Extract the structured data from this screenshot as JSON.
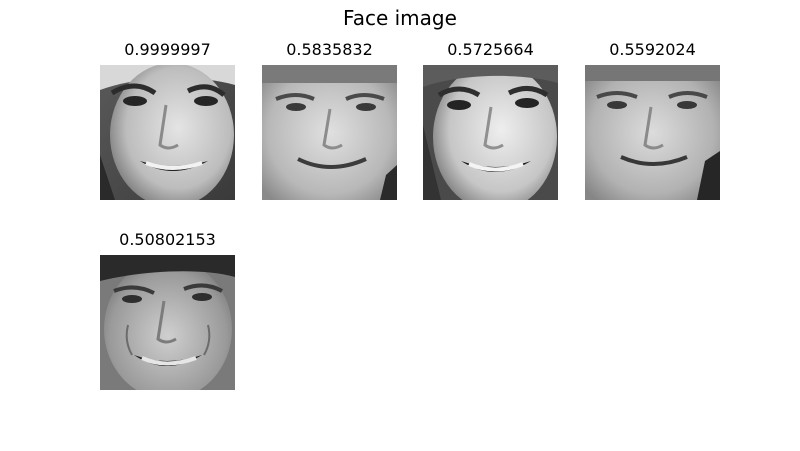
{
  "figure": {
    "title": "Face image"
  },
  "panels": [
    {
      "score": "0.9999997"
    },
    {
      "score": "0.5835832"
    },
    {
      "score": "0.5725664"
    },
    {
      "score": "0.5592024"
    },
    {
      "score": "0.50802153"
    }
  ]
}
